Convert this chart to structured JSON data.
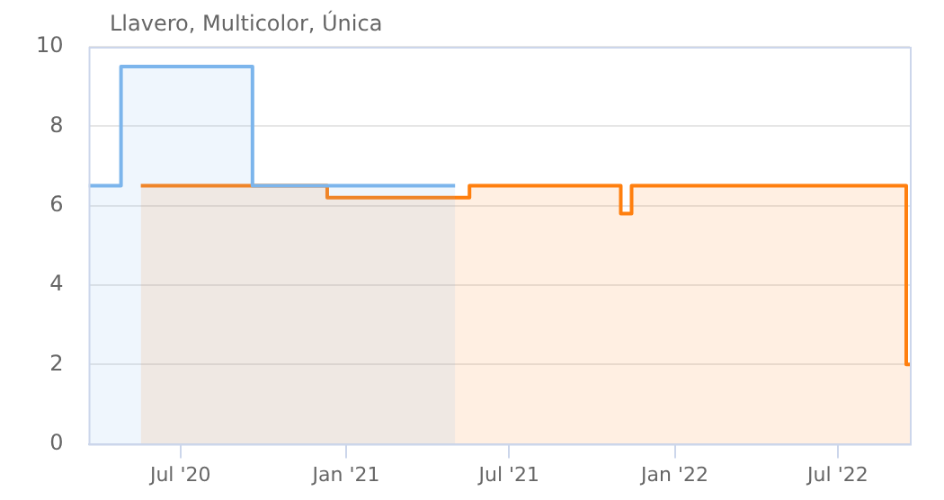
{
  "chart_data": {
    "type": "area",
    "title": "Llavero, Multicolor, Única",
    "series": [
      {
        "color": "#7cb5ec",
        "x": [
          "2020-03-21",
          "2020-04-26",
          "2020-04-26",
          "2020-09-19",
          "2020-09-19",
          "2021-05-02"
        ],
        "values": [
          6.5,
          6.5,
          9.5,
          9.5,
          6.5,
          6.5
        ]
      },
      {
        "color": "#ff7f0e",
        "x": [
          "2020-05-18",
          "2020-12-11",
          "2020-12-11",
          "2021-05-18",
          "2021-05-18",
          "2021-11-02",
          "2021-11-02",
          "2021-11-14",
          "2021-11-14",
          "2022-09-15",
          "2022-09-15",
          "2022-09-19"
        ],
        "values": [
          6.5,
          6.5,
          6.2,
          6.2,
          6.5,
          6.5,
          5.8,
          5.8,
          6.5,
          6.5,
          2,
          2
        ]
      }
    ],
    "xlim": [
      "2020-03-21",
      "2022-09-19"
    ],
    "xticks": [
      {
        "value": "2020-07-01",
        "label": "Jul '20"
      },
      {
        "value": "2021-01-01",
        "label": "Jan '21"
      },
      {
        "value": "2021-07-01",
        "label": "Jul '21"
      },
      {
        "value": "2022-01-01",
        "label": "Jan '22"
      },
      {
        "value": "2022-07-01",
        "label": "Jul '22"
      }
    ],
    "ylim": [
      0,
      10
    ],
    "yticks": [
      0,
      2,
      4,
      6,
      8,
      10
    ],
    "grid": "y",
    "legend": false
  }
}
